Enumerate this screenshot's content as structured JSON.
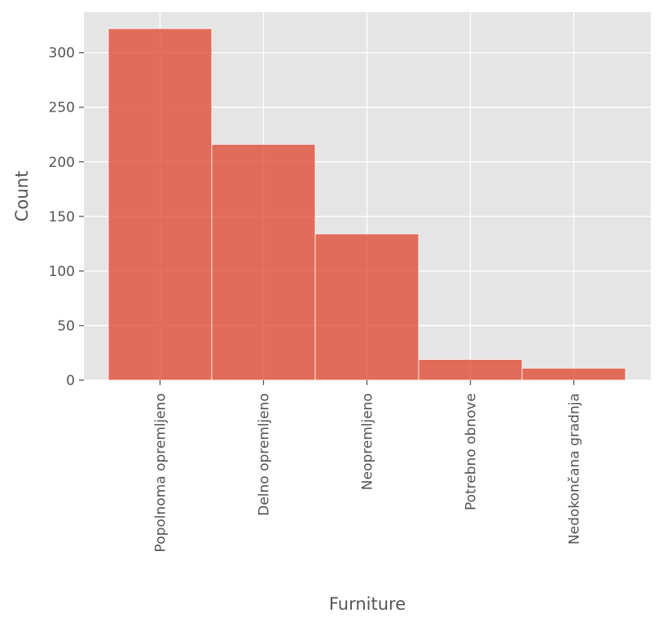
{
  "chart_data": {
    "type": "bar",
    "xlabel": "Furniture",
    "ylabel": "Count",
    "categories": [
      "Popolnoma opremljeno",
      "Delno opremljeno",
      "Neopremljeno",
      "Potrebno obnove",
      "Nedokončana gradnja"
    ],
    "values": [
      322,
      216,
      134,
      19,
      11
    ],
    "ylim": [
      0,
      337
    ],
    "yticks": [
      0,
      50,
      100,
      150,
      200,
      250,
      300
    ],
    "grid": true,
    "colors": {
      "bar_fill": "#e24a33",
      "bar_edge": "#ffffff",
      "plot_background": "#e5e5e5",
      "grid": "#ffffff",
      "text": "#555555"
    }
  }
}
